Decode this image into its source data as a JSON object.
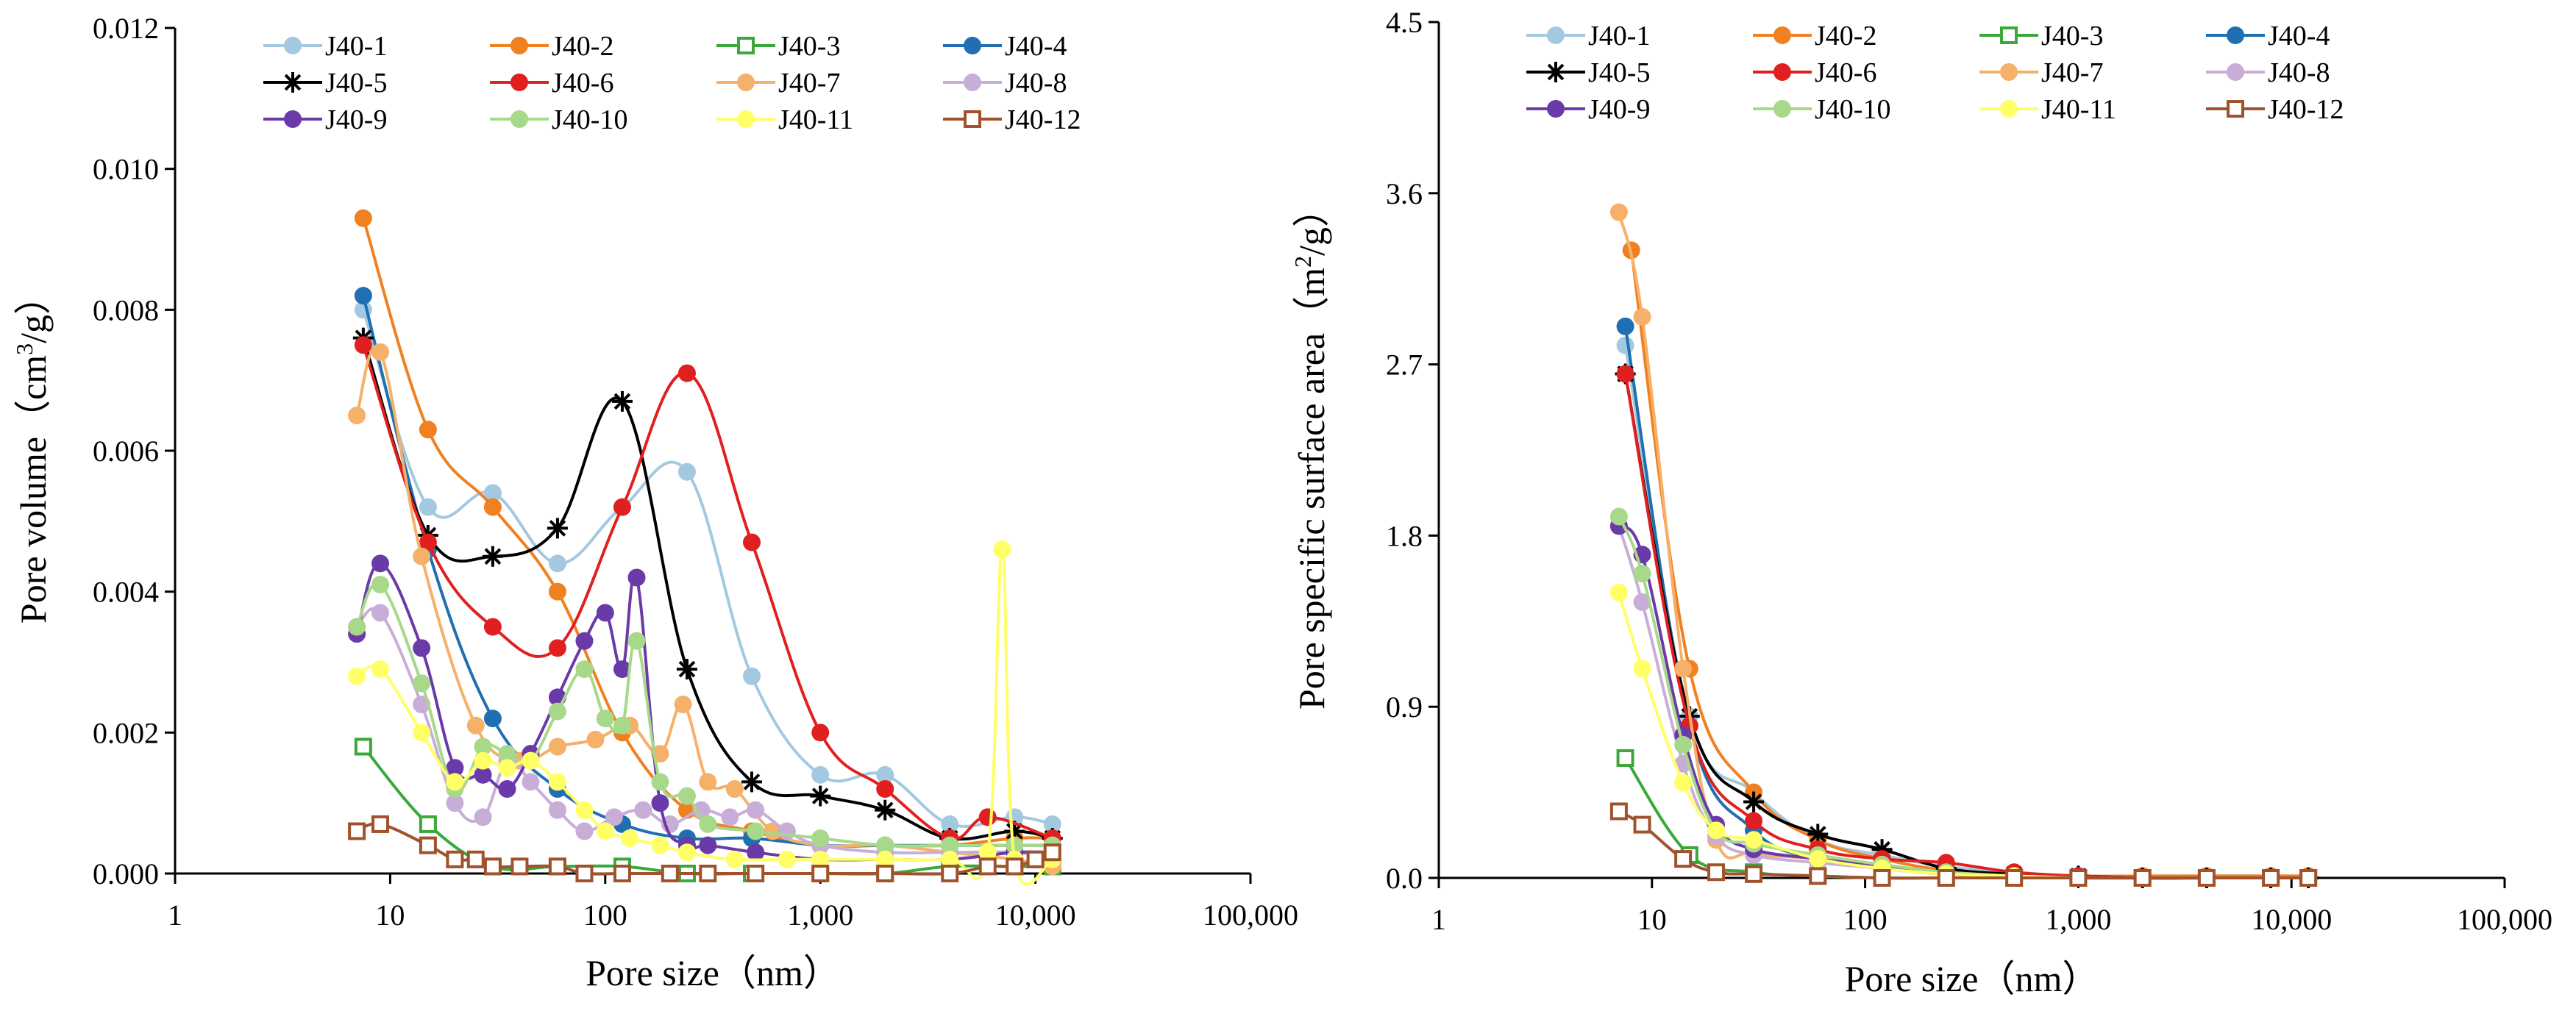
{
  "chart_data": [
    {
      "type": "line",
      "xscale": "log",
      "xlabel": "Pore size（nm）",
      "ylabel_main": "Pore volume（cm",
      "ylabel_sup": "3",
      "ylabel_tail": "/g）",
      "xlim": [
        1,
        100000
      ],
      "ylim": [
        0,
        0.012
      ],
      "xticks": [
        {
          "v": 1,
          "label": "1"
        },
        {
          "v": 10,
          "label": "10"
        },
        {
          "v": 100,
          "label": "100"
        },
        {
          "v": 1000,
          "label": "1,000"
        },
        {
          "v": 10000,
          "label": "10,000"
        },
        {
          "v": 100000,
          "label": "100,000"
        }
      ],
      "yticks": [
        {
          "v": 0,
          "label": "0.000"
        },
        {
          "v": 0.002,
          "label": "0.002"
        },
        {
          "v": 0.004,
          "label": "0.004"
        },
        {
          "v": 0.006,
          "label": "0.006"
        },
        {
          "v": 0.008,
          "label": "0.008"
        },
        {
          "v": 0.01,
          "label": "0.010"
        },
        {
          "v": 0.012,
          "label": "0.012"
        }
      ],
      "series": [
        {
          "name": "J40-1",
          "color": "#a3c9e0",
          "marker": "circle",
          "x": [
            7.5,
            15,
            30,
            60,
            120,
            240,
            480,
            1000,
            2000,
            4000,
            8000,
            12000
          ],
          "y": [
            0.008,
            0.0052,
            0.0054,
            0.0044,
            0.0052,
            0.0057,
            0.0028,
            0.0014,
            0.0014,
            0.0007,
            0.0008,
            0.0007
          ]
        },
        {
          "name": "J40-2",
          "color": "#f08020",
          "marker": "circle",
          "x": [
            7.5,
            15,
            30,
            60,
            120,
            240,
            480,
            1000,
            2000,
            4000,
            8000,
            12000
          ],
          "y": [
            0.0093,
            0.0063,
            0.0052,
            0.004,
            0.002,
            0.0009,
            0.0006,
            0.0004,
            0.0004,
            0.0004,
            0.0005,
            0.0005
          ]
        },
        {
          "name": "J40-3",
          "color": "#3aa83a",
          "marker": "square-open",
          "x": [
            7.5,
            15,
            30,
            60,
            120,
            240,
            480,
            1000,
            2000,
            4000,
            8000,
            12000
          ],
          "y": [
            0.0018,
            0.0007,
            0.0001,
            0.0001,
            0.0001,
            0.0,
            0.0,
            0.0,
            0.0,
            0.0001,
            0.0001,
            0.0001
          ]
        },
        {
          "name": "J40-4",
          "color": "#1f6fb2",
          "marker": "circle",
          "x": [
            7.5,
            15,
            30,
            60,
            120,
            240,
            480,
            1000,
            2000,
            4000,
            8000,
            12000
          ],
          "y": [
            0.0082,
            0.0046,
            0.0022,
            0.0012,
            0.0007,
            0.0005,
            0.0005,
            0.0004,
            0.0004,
            0.0004,
            0.0004,
            0.0004
          ]
        },
        {
          "name": "J40-5",
          "color": "#000000",
          "marker": "star",
          "x": [
            7.5,
            15,
            30,
            60,
            120,
            240,
            480,
            1000,
            2000,
            4000,
            8000,
            12000
          ],
          "y": [
            0.0076,
            0.0048,
            0.0045,
            0.0049,
            0.0067,
            0.0029,
            0.0013,
            0.0011,
            0.0009,
            0.0005,
            0.0006,
            0.0005
          ]
        },
        {
          "name": "J40-6",
          "color": "#e02020",
          "marker": "circle",
          "x": [
            7.5,
            15,
            30,
            60,
            120,
            240,
            480,
            1000,
            2000,
            4000,
            6000,
            12000
          ],
          "y": [
            0.0075,
            0.0047,
            0.0035,
            0.0032,
            0.0052,
            0.0071,
            0.0047,
            0.002,
            0.0012,
            0.0005,
            0.0008,
            0.0005
          ]
        },
        {
          "name": "J40-7",
          "color": "#f5b06a",
          "marker": "circle",
          "x": [
            7,
            9,
            14,
            25,
            40,
            60,
            90,
            130,
            180,
            230,
            300,
            400,
            600,
            1000,
            2000,
            4000,
            8000,
            12000
          ],
          "y": [
            0.0065,
            0.0074,
            0.0045,
            0.0021,
            0.0016,
            0.0018,
            0.0019,
            0.0021,
            0.0017,
            0.0024,
            0.0013,
            0.0012,
            0.0006,
            0.0004,
            0.0004,
            0.0003,
            0.0002,
            0.0001
          ]
        },
        {
          "name": "J40-8",
          "color": "#c8aed6",
          "marker": "circle",
          "x": [
            7,
            9,
            14,
            20,
            27,
            35,
            45,
            60,
            80,
            110,
            150,
            200,
            280,
            380,
            500,
            700,
            1000,
            2000,
            4000,
            8000,
            12000
          ],
          "y": [
            0.0035,
            0.0037,
            0.0024,
            0.001,
            0.0008,
            0.0016,
            0.0013,
            0.0009,
            0.0006,
            0.0008,
            0.0009,
            0.0007,
            0.0009,
            0.0008,
            0.0009,
            0.0006,
            0.0004,
            0.0003,
            0.0003,
            0.0003,
            0.0002
          ]
        },
        {
          "name": "J40-9",
          "color": "#6a3aa8",
          "marker": "circle",
          "x": [
            7,
            9,
            14,
            20,
            27,
            35,
            45,
            60,
            80,
            100,
            120,
            140,
            180,
            240,
            300,
            500,
            1000,
            2000,
            4000,
            8000,
            12000
          ],
          "y": [
            0.0034,
            0.0044,
            0.0032,
            0.0015,
            0.0014,
            0.0012,
            0.0017,
            0.0025,
            0.0033,
            0.0037,
            0.0029,
            0.0042,
            0.001,
            0.0004,
            0.0004,
            0.0003,
            0.0002,
            0.0002,
            0.0002,
            0.0003,
            0.0003
          ]
        },
        {
          "name": "J40-10",
          "color": "#a8d88a",
          "marker": "circle",
          "x": [
            7,
            9,
            14,
            20,
            27,
            35,
            45,
            60,
            80,
            100,
            120,
            140,
            180,
            240,
            300,
            500,
            1000,
            2000,
            4000,
            8000,
            12000
          ],
          "y": [
            0.0035,
            0.0041,
            0.0027,
            0.0012,
            0.0018,
            0.0017,
            0.0016,
            0.0023,
            0.0029,
            0.0022,
            0.0021,
            0.0033,
            0.0013,
            0.0011,
            0.0007,
            0.0006,
            0.0005,
            0.0004,
            0.0004,
            0.0004,
            0.0004
          ]
        },
        {
          "name": "J40-11",
          "color": "#ffff66",
          "marker": "circle",
          "x": [
            7,
            9,
            14,
            20,
            27,
            35,
            45,
            60,
            80,
            100,
            130,
            180,
            240,
            400,
            700,
            1000,
            2000,
            4000,
            6000,
            7000,
            8000,
            12000
          ],
          "y": [
            0.0028,
            0.0029,
            0.002,
            0.0013,
            0.0016,
            0.0015,
            0.0016,
            0.0013,
            0.0009,
            0.0006,
            0.0005,
            0.0004,
            0.0003,
            0.0002,
            0.0002,
            0.0002,
            0.0002,
            0.0002,
            0.0003,
            0.0046,
            0.0002,
            0.0002
          ]
        },
        {
          "name": "J40-12",
          "color": "#a0522d",
          "marker": "square-open",
          "x": [
            7,
            9,
            15,
            20,
            25,
            30,
            40,
            60,
            80,
            120,
            200,
            300,
            500,
            1000,
            2000,
            4000,
            6000,
            8000,
            10000,
            12000
          ],
          "y": [
            0.0006,
            0.0007,
            0.0004,
            0.0002,
            0.0002,
            0.0001,
            0.0001,
            0.0001,
            0.0,
            0.0,
            0.0,
            0.0,
            0.0,
            0.0,
            0.0,
            0.0,
            0.0001,
            0.0001,
            0.0002,
            0.0003
          ]
        }
      ]
    },
    {
      "type": "line",
      "xscale": "log",
      "xlabel": "Pore size（nm）",
      "ylabel_main": "Pore specific surface area（m",
      "ylabel_sup": "2",
      "ylabel_tail": "/g）",
      "xlim": [
        1,
        100000
      ],
      "ylim": [
        0,
        4.5
      ],
      "xticks": [
        {
          "v": 1,
          "label": "1"
        },
        {
          "v": 10,
          "label": "10"
        },
        {
          "v": 100,
          "label": "100"
        },
        {
          "v": 1000,
          "label": "1,000"
        },
        {
          "v": 10000,
          "label": "10,000"
        },
        {
          "v": 100000,
          "label": "100,000"
        }
      ],
      "yticks": [
        {
          "v": 0,
          "label": "0.0"
        },
        {
          "v": 0.9,
          "label": "0.9"
        },
        {
          "v": 1.8,
          "label": "1.8"
        },
        {
          "v": 2.7,
          "label": "2.7"
        },
        {
          "v": 3.6,
          "label": "3.6"
        },
        {
          "v": 4.5,
          "label": "4.5"
        }
      ],
      "series": [
        {
          "name": "J40-1",
          "color": "#a3c9e0",
          "marker": "circle",
          "x": [
            7.5,
            15,
            30,
            60,
            120,
            240,
            500,
            1000,
            2000,
            4000,
            8000,
            12000
          ],
          "y": [
            2.8,
            0.85,
            0.45,
            0.2,
            0.12,
            0.06,
            0.03,
            0.01,
            0.01,
            0.01,
            0.01,
            0.01
          ]
        },
        {
          "name": "J40-2",
          "color": "#f08020",
          "marker": "circle",
          "x": [
            8,
            15,
            30,
            60,
            120,
            240,
            500,
            1000,
            2000,
            4000,
            8000,
            12000
          ],
          "y": [
            3.3,
            1.1,
            0.45,
            0.2,
            0.1,
            0.04,
            0.02,
            0.01,
            0.01,
            0.01,
            0.01,
            0.01
          ]
        },
        {
          "name": "J40-3",
          "color": "#3aa83a",
          "marker": "square-open",
          "x": [
            7.5,
            15,
            30,
            60,
            120,
            240,
            500,
            1000,
            2000,
            4000,
            8000,
            12000
          ],
          "y": [
            0.63,
            0.12,
            0.03,
            0.01,
            0.0,
            0.0,
            0.0,
            0.0,
            0.0,
            0.0,
            0.0,
            0.0
          ]
        },
        {
          "name": "J40-4",
          "color": "#1f6fb2",
          "marker": "circle",
          "x": [
            7.5,
            15,
            30,
            60,
            120,
            240,
            500,
            1000,
            2000,
            4000,
            8000,
            12000
          ],
          "y": [
            2.9,
            0.8,
            0.25,
            0.1,
            0.05,
            0.02,
            0.01,
            0.0,
            0.0,
            0.0,
            0.0,
            0.0
          ]
        },
        {
          "name": "J40-5",
          "color": "#000000",
          "marker": "star",
          "x": [
            7.5,
            15,
            30,
            60,
            120,
            240,
            500,
            1000,
            2000,
            4000,
            8000,
            12000
          ],
          "y": [
            2.65,
            0.85,
            0.4,
            0.23,
            0.15,
            0.05,
            0.02,
            0.01,
            0.0,
            0.0,
            0.0,
            0.0
          ]
        },
        {
          "name": "J40-6",
          "color": "#e02020",
          "marker": "circle",
          "x": [
            7.5,
            15,
            30,
            60,
            120,
            240,
            500,
            1000,
            2000,
            4000,
            8000,
            12000
          ],
          "y": [
            2.65,
            0.8,
            0.3,
            0.15,
            0.1,
            0.08,
            0.03,
            0.01,
            0.0,
            0.0,
            0.0,
            0.0
          ]
        },
        {
          "name": "J40-7",
          "color": "#f5b06a",
          "marker": "circle",
          "x": [
            7,
            9,
            14,
            20,
            30,
            60,
            120,
            240,
            500,
            1000,
            2000,
            4000,
            8000,
            12000
          ],
          "y": [
            3.5,
            2.95,
            1.1,
            0.2,
            0.13,
            0.1,
            0.06,
            0.03,
            0.01,
            0.0,
            0.0,
            0.0,
            0.0,
            0.0
          ]
        },
        {
          "name": "J40-8",
          "color": "#c8aed6",
          "marker": "circle",
          "x": [
            7,
            9,
            14,
            20,
            30,
            60,
            120,
            240,
            500,
            1000,
            2000,
            4000,
            8000,
            12000
          ],
          "y": [
            1.85,
            1.45,
            0.6,
            0.22,
            0.12,
            0.08,
            0.05,
            0.02,
            0.01,
            0.0,
            0.0,
            0.0,
            0.0,
            0.0
          ]
        },
        {
          "name": "J40-9",
          "color": "#6a3aa8",
          "marker": "circle",
          "x": [
            7,
            9,
            14,
            20,
            30,
            60,
            120,
            240,
            500,
            1000,
            2000,
            4000,
            8000,
            12000
          ],
          "y": [
            1.85,
            1.7,
            0.75,
            0.28,
            0.15,
            0.1,
            0.06,
            0.02,
            0.01,
            0.0,
            0.0,
            0.0,
            0.0,
            0.0
          ]
        },
        {
          "name": "J40-10",
          "color": "#a8d88a",
          "marker": "circle",
          "x": [
            7,
            9,
            14,
            20,
            30,
            60,
            120,
            240,
            500,
            1000,
            2000,
            4000,
            8000,
            12000
          ],
          "y": [
            1.9,
            1.6,
            0.7,
            0.25,
            0.18,
            0.12,
            0.07,
            0.03,
            0.01,
            0.0,
            0.0,
            0.0,
            0.0,
            0.0
          ]
        },
        {
          "name": "J40-11",
          "color": "#ffff66",
          "marker": "circle",
          "x": [
            7,
            9,
            14,
            20,
            30,
            60,
            120,
            240,
            500,
            1000,
            2000,
            4000,
            8000,
            12000
          ],
          "y": [
            1.5,
            1.1,
            0.5,
            0.25,
            0.2,
            0.1,
            0.05,
            0.02,
            0.01,
            0.0,
            0.0,
            0.0,
            0.0,
            0.0
          ]
        },
        {
          "name": "J40-12",
          "color": "#a0522d",
          "marker": "square-open",
          "x": [
            7,
            9,
            14,
            20,
            30,
            60,
            120,
            240,
            500,
            1000,
            2000,
            4000,
            8000,
            12000
          ],
          "y": [
            0.35,
            0.28,
            0.1,
            0.03,
            0.02,
            0.01,
            0.0,
            0.0,
            0.0,
            0.0,
            0.0,
            0.0,
            0.0,
            0.0
          ]
        }
      ]
    }
  ]
}
